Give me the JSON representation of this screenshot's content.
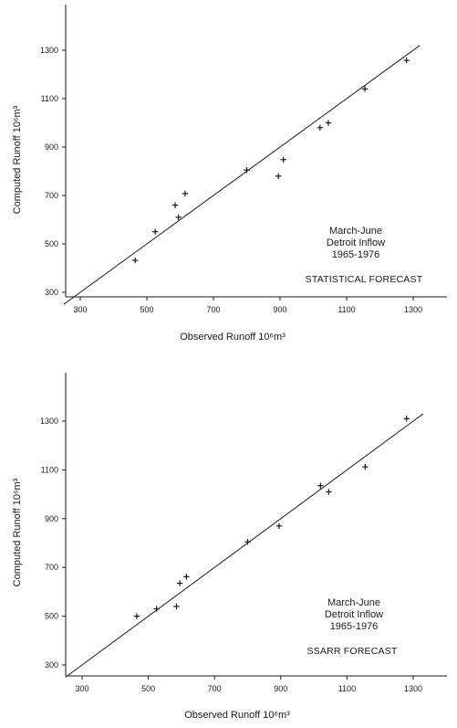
{
  "chart_data": [
    {
      "type": "scatter",
      "xlabel": "Observed Runoff 10⁶m³",
      "ylabel": "Computed Runoff 10⁶m³",
      "xlim": [
        250,
        1450
      ],
      "ylim": [
        250,
        1450
      ],
      "xticks": [
        "300",
        "500",
        "700",
        "900",
        "1100",
        "1300"
      ],
      "yticks": [
        "300",
        "500",
        "700",
        "900",
        "1100",
        "1300"
      ],
      "annotation": [
        "March-June",
        "Detroit Inflow",
        "1965-1976"
      ],
      "forecast_label": "STATISTICAL FORECAST",
      "reference_line": [
        [
          250,
          250
        ],
        [
          1320,
          1320
        ]
      ],
      "points": [
        {
          "x": 465,
          "y": 432
        },
        {
          "x": 525,
          "y": 550
        },
        {
          "x": 585,
          "y": 660
        },
        {
          "x": 595,
          "y": 610
        },
        {
          "x": 615,
          "y": 708
        },
        {
          "x": 800,
          "y": 805
        },
        {
          "x": 895,
          "y": 780
        },
        {
          "x": 910,
          "y": 848
        },
        {
          "x": 1020,
          "y": 980
        },
        {
          "x": 1045,
          "y": 1000
        },
        {
          "x": 1155,
          "y": 1140
        },
        {
          "x": 1280,
          "y": 1258
        }
      ]
    },
    {
      "type": "scatter",
      "xlabel": "Observed Runoff 10⁶m³",
      "ylabel": "Computed Runoff 10⁶m³",
      "xlim": [
        250,
        1450
      ],
      "ylim": [
        250,
        1450
      ],
      "xticks": [
        "300",
        "500",
        "700",
        "900",
        "1100",
        "1300"
      ],
      "yticks": [
        "300",
        "500",
        "700",
        "900",
        "1100",
        "1300"
      ],
      "annotation": [
        "March-June",
        "Detroit Inflow",
        "1965-1976"
      ],
      "forecast_label": "SSARR FORECAST",
      "reference_line": [
        [
          250,
          250
        ],
        [
          1330,
          1330
        ]
      ],
      "points": [
        {
          "x": 465,
          "y": 500
        },
        {
          "x": 525,
          "y": 530
        },
        {
          "x": 585,
          "y": 540
        },
        {
          "x": 595,
          "y": 635
        },
        {
          "x": 615,
          "y": 662
        },
        {
          "x": 800,
          "y": 805
        },
        {
          "x": 895,
          "y": 870
        },
        {
          "x": 1020,
          "y": 1035
        },
        {
          "x": 1045,
          "y": 1010
        },
        {
          "x": 1155,
          "y": 1112
        },
        {
          "x": 1280,
          "y": 1310
        }
      ]
    }
  ]
}
